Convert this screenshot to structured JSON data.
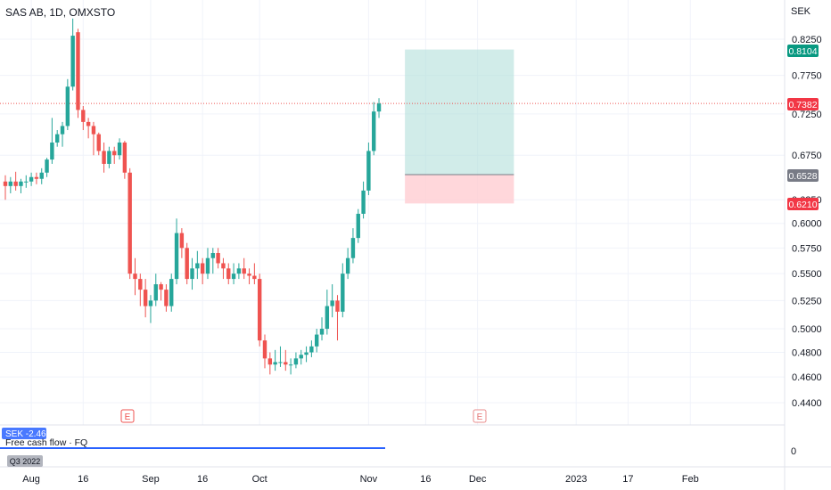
{
  "header": {
    "symbol_title": "SAS AB, 1D, OMXSTO"
  },
  "axis": {
    "currency": "SEK",
    "y_ticks": [
      "0.8250",
      "0.7750",
      "0.7250",
      "0.6750",
      "0.6250",
      "0.6000",
      "0.5750",
      "0.5500",
      "0.5250",
      "0.5000",
      "0.4800",
      "0.4600",
      "0.4400"
    ],
    "x_ticks": [
      "Aug",
      "16",
      "Sep",
      "16",
      "Oct",
      "Nov",
      "16",
      "Dec",
      "2023",
      "17",
      "Feb"
    ]
  },
  "price_badges": {
    "target": "0.8104",
    "last": "0.7382",
    "entry": "0.6528",
    "stop": "0.6210"
  },
  "colors": {
    "up": "#26a69a",
    "down": "#ef5350",
    "target_zone": "#b2dfdb",
    "stop_zone": "#ffcdd2",
    "last_badge": "#f23645",
    "target_badge": "#089981",
    "entry_badge": "#787b86",
    "indicator_line": "#2962ff"
  },
  "events": {
    "earnings_marker": "E"
  },
  "indicator": {
    "value_badge": "SEK -2.46B",
    "label": "Free cash flow · FQ",
    "period_badge": "Q3 2022",
    "zero_label": "0"
  },
  "chart_data": {
    "type": "candlestick",
    "title": "SAS AB, 1D, OMXSTO",
    "ylabel": "SEK",
    "scale": "log",
    "ylim": [
      0.43,
      0.85
    ],
    "x": [
      "Jul 26",
      "Jul 27",
      "Jul 28",
      "Jul 29",
      "Aug 1",
      "Aug 2",
      "Aug 3",
      "Aug 4",
      "Aug 5",
      "Aug 8",
      "Aug 9",
      "Aug 10",
      "Aug 11",
      "Aug 12",
      "Aug 15",
      "Aug 16",
      "Aug 17",
      "Aug 18",
      "Aug 19",
      "Aug 22",
      "Aug 23",
      "Aug 24",
      "Aug 25",
      "Aug 26",
      "Aug 29",
      "Aug 30",
      "Aug 31",
      "Sep 1",
      "Sep 2",
      "Sep 5",
      "Sep 6",
      "Sep 7",
      "Sep 8",
      "Sep 9",
      "Sep 12",
      "Sep 13",
      "Sep 14",
      "Sep 15",
      "Sep 16",
      "Sep 19",
      "Sep 20",
      "Sep 21",
      "Sep 22",
      "Sep 23",
      "Sep 26",
      "Sep 27",
      "Sep 28",
      "Sep 29",
      "Sep 30",
      "Oct 3",
      "Oct 4",
      "Oct 5",
      "Oct 6",
      "Oct 7",
      "Oct 10",
      "Oct 11",
      "Oct 12",
      "Oct 13",
      "Oct 14",
      "Oct 17",
      "Oct 18",
      "Oct 19",
      "Oct 20",
      "Oct 21",
      "Oct 24",
      "Oct 25",
      "Oct 26",
      "Oct 27",
      "Oct 28",
      "Oct 31",
      "Nov 1",
      "Nov 2",
      "Nov 3"
    ],
    "series": [
      {
        "open": [
          0.645,
          0.64,
          0.645,
          0.64,
          0.645,
          0.645,
          0.65,
          0.648,
          0.655,
          0.67,
          0.69,
          0.7,
          0.71,
          0.76,
          0.835,
          0.73,
          0.715,
          0.71,
          0.7,
          0.68,
          0.665,
          0.68,
          0.675,
          0.69,
          0.655,
          0.55,
          0.545,
          0.535,
          0.52,
          0.525,
          0.54,
          0.535,
          0.52,
          0.545,
          0.59,
          0.575,
          0.545,
          0.555,
          0.56,
          0.55,
          0.565,
          0.57,
          0.56,
          0.555,
          0.545,
          0.55,
          0.555,
          0.55,
          0.548,
          0.545,
          0.49,
          0.475,
          0.47,
          0.472,
          0.472,
          0.47,
          0.47,
          0.475,
          0.478,
          0.48,
          0.485,
          0.495,
          0.5,
          0.52,
          0.525,
          0.515,
          0.55,
          0.565,
          0.585,
          0.61,
          0.635,
          0.68,
          0.728
        ],
        "close": [
          0.64,
          0.645,
          0.64,
          0.645,
          0.645,
          0.65,
          0.648,
          0.655,
          0.67,
          0.69,
          0.7,
          0.71,
          0.76,
          0.83,
          0.73,
          0.715,
          0.71,
          0.7,
          0.68,
          0.665,
          0.68,
          0.675,
          0.69,
          0.655,
          0.55,
          0.545,
          0.535,
          0.52,
          0.525,
          0.54,
          0.535,
          0.52,
          0.545,
          0.59,
          0.575,
          0.545,
          0.555,
          0.56,
          0.55,
          0.565,
          0.57,
          0.56,
          0.555,
          0.545,
          0.55,
          0.555,
          0.55,
          0.548,
          0.545,
          0.49,
          0.475,
          0.47,
          0.472,
          0.472,
          0.47,
          0.47,
          0.475,
          0.478,
          0.48,
          0.485,
          0.495,
          0.5,
          0.52,
          0.525,
          0.515,
          0.55,
          0.565,
          0.585,
          0.61,
          0.635,
          0.68,
          0.728,
          0.7382
        ],
        "high": [
          0.652,
          0.65,
          0.656,
          0.648,
          0.652,
          0.655,
          0.655,
          0.66,
          0.672,
          0.72,
          0.705,
          0.715,
          0.77,
          0.855,
          0.84,
          0.735,
          0.72,
          0.715,
          0.702,
          0.69,
          0.685,
          0.685,
          0.695,
          0.692,
          0.66,
          0.565,
          0.55,
          0.545,
          0.53,
          0.55,
          0.542,
          0.54,
          0.55,
          0.605,
          0.595,
          0.58,
          0.565,
          0.572,
          0.565,
          0.575,
          0.575,
          0.575,
          0.565,
          0.56,
          0.56,
          0.56,
          0.565,
          0.555,
          0.56,
          0.55,
          0.495,
          0.48,
          0.482,
          0.485,
          0.482,
          0.475,
          0.48,
          0.482,
          0.485,
          0.49,
          0.5,
          0.51,
          0.535,
          0.54,
          0.53,
          0.56,
          0.575,
          0.595,
          0.615,
          0.645,
          0.69,
          0.74,
          0.745
        ],
        "low": [
          0.625,
          0.632,
          0.635,
          0.632,
          0.638,
          0.64,
          0.642,
          0.642,
          0.65,
          0.665,
          0.685,
          0.685,
          0.705,
          0.755,
          0.72,
          0.705,
          0.695,
          0.675,
          0.675,
          0.655,
          0.66,
          0.665,
          0.67,
          0.648,
          0.545,
          0.53,
          0.52,
          0.51,
          0.505,
          0.52,
          0.525,
          0.515,
          0.515,
          0.54,
          0.565,
          0.54,
          0.535,
          0.545,
          0.54,
          0.545,
          0.55,
          0.555,
          0.545,
          0.54,
          0.54,
          0.545,
          0.545,
          0.54,
          0.54,
          0.485,
          0.467,
          0.462,
          0.465,
          0.468,
          0.465,
          0.462,
          0.467,
          0.47,
          0.472,
          0.476,
          0.48,
          0.49,
          0.495,
          0.51,
          0.49,
          0.51,
          0.545,
          0.56,
          0.58,
          0.605,
          0.63,
          0.675,
          0.72
        ]
      }
    ],
    "position": {
      "target": 0.8104,
      "entry": 0.6528,
      "stop": 0.621
    },
    "indicator": {
      "name": "Free cash flow · FQ",
      "value": -2.46,
      "unit": "SEK B",
      "period": "Q3 2022"
    }
  }
}
